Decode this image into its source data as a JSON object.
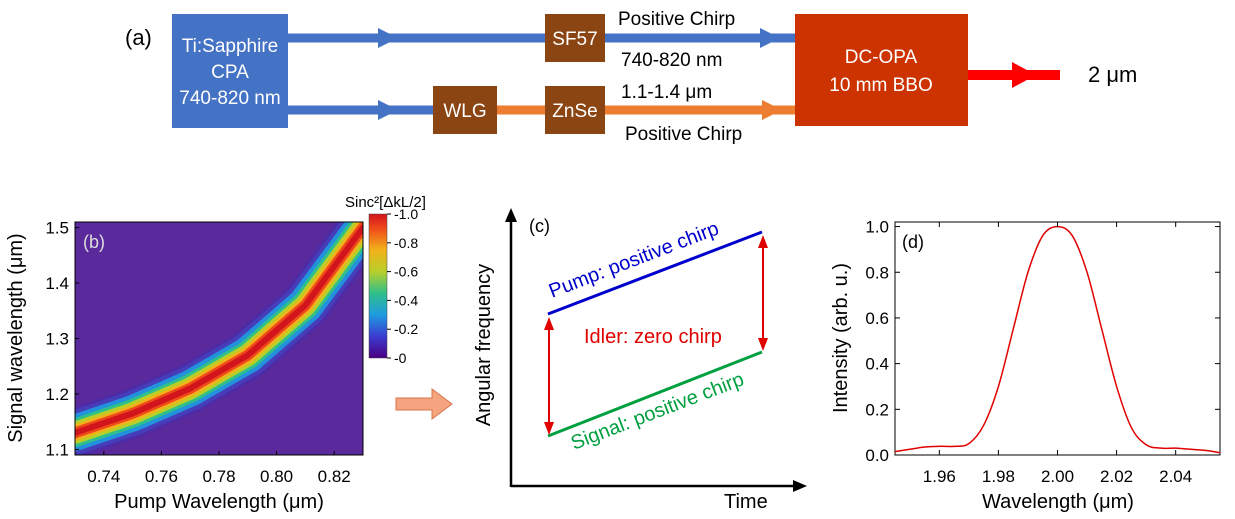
{
  "panel_a": {
    "label": "(a)",
    "source_lines": [
      "Ti:Sapphire",
      "CPA",
      "740-820 nm"
    ],
    "sf57": "SF57",
    "wlg": "WLG",
    "znse": "ZnSe",
    "top_chirp": "Positive Chirp",
    "top_wavelength": "740-820 nm",
    "bottom_wavelength": "1.1-1.4 μm",
    "bottom_chirp": "Positive Chirp",
    "opa_lines": [
      "DC-OPA",
      "10 mm BBO"
    ],
    "output": "2 μm",
    "colors": {
      "blue_box": "#4472c4",
      "brown_box": "#8b4513",
      "red_box": "#cc3300",
      "blue_arrow": "#4472c4",
      "orange_arrow": "#ed7d31",
      "red_arrow": "#ff0000"
    }
  },
  "panel_b": {
    "label": "(b)",
    "colorbar_title": "Sinc²[ΔkL/2]",
    "colorbar_ticks": [
      "1.0",
      "0.8",
      "0.6",
      "0.4",
      "0.2",
      "0"
    ],
    "xlabel": "Pump Wavelength (μm)",
    "ylabel": "Signal wavelength (μm)",
    "xticks": [
      "0.74",
      "0.76",
      "0.78",
      "0.80",
      "0.82"
    ],
    "yticks": [
      "1.5",
      "1.4",
      "1.3",
      "1.2",
      "1.1"
    ]
  },
  "panel_c": {
    "label": "(c)",
    "pump": "Pump: positive chirp",
    "idler": "Idler: zero chirp",
    "signal": "Signal: positive chirp",
    "xlabel": "Time",
    "ylabel": "Angular frequency",
    "colors": {
      "pump": "#0000cc",
      "idler": "#e00000",
      "signal": "#00a040"
    }
  },
  "panel_d": {
    "label": "(d)",
    "xlabel": "Wavelength (μm)",
    "ylabel": "Intensity  (arb. u.)",
    "xticks": [
      "1.96",
      "1.98",
      "2.00",
      "2.02",
      "2.04"
    ],
    "yticks": [
      "1.0",
      "0.8",
      "0.6",
      "0.4",
      "0.2",
      "0.0"
    ]
  },
  "chart_data": [
    {
      "type": "heatmap",
      "title": "",
      "xlabel": "Pump Wavelength (μm)",
      "ylabel": "Signal wavelength (μm)",
      "xlim": [
        0.73,
        0.83
      ],
      "ylim": [
        1.09,
        1.51
      ],
      "colorbar": {
        "label": "Sinc²[ΔkL/2]",
        "range": [
          0,
          1
        ]
      },
      "ridge": {
        "x": [
          0.73,
          0.75,
          0.77,
          0.79,
          0.81,
          0.83
        ],
        "y": [
          1.13,
          1.165,
          1.21,
          1.27,
          1.36,
          1.5
        ]
      }
    },
    {
      "type": "line",
      "title": "",
      "xlabel": "Wavelength (μm)",
      "ylabel": "Intensity  (arb. u.)",
      "xlim": [
        1.945,
        2.055
      ],
      "ylim": [
        0,
        1.02
      ],
      "series": [
        {
          "x": [
            1.945,
            1.95,
            1.955,
            1.96,
            1.965,
            1.97,
            1.975,
            1.98,
            1.985,
            1.99,
            1.995,
            2.0,
            2.005,
            2.01,
            2.015,
            2.02,
            2.025,
            2.03,
            2.035,
            2.04,
            2.045,
            2.05,
            2.055
          ],
          "y": [
            0.015,
            0.025,
            0.035,
            0.038,
            0.038,
            0.05,
            0.13,
            0.3,
            0.55,
            0.8,
            0.96,
            1.0,
            0.96,
            0.8,
            0.55,
            0.3,
            0.12,
            0.045,
            0.03,
            0.03,
            0.025,
            0.02,
            0.01
          ]
        }
      ]
    }
  ]
}
